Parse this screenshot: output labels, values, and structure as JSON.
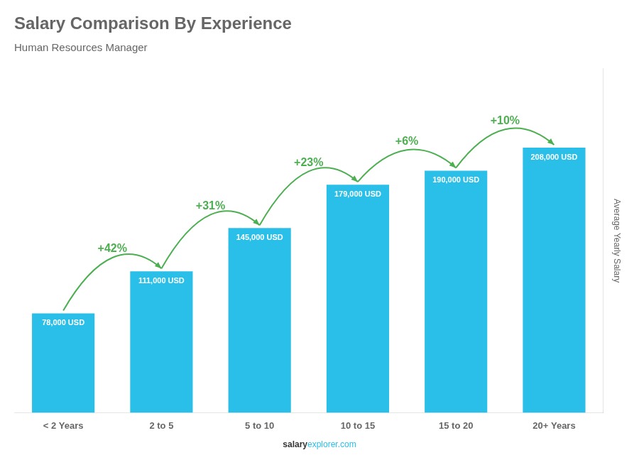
{
  "chart_data": {
    "type": "bar",
    "title": "Salary Comparison By Experience",
    "subtitle": "Human Resources Manager",
    "categories": [
      "< 2 Years",
      "2 to 5",
      "5 to 10",
      "10 to 15",
      "15 to 20",
      "20+ Years"
    ],
    "values": [
      78000,
      111000,
      145000,
      179000,
      190000,
      208000
    ],
    "value_labels": [
      "78,000 USD",
      "111,000 USD",
      "145,000 USD",
      "179,000 USD",
      "190,000 USD",
      "208,000 USD"
    ],
    "data_labels": true,
    "annotations": [
      "+42%",
      "+31%",
      "+23%",
      "+6%",
      "+10%"
    ],
    "footer": [
      "salary",
      "explorer.com"
    ],
    "ylabel": "Average Yearly Salary",
    "color": "#29bfe8",
    "ylim": [
      0,
      270000
    ],
    "yticks": [],
    "tick_labels": "x",
    "grid": false,
    "legend": false
  }
}
